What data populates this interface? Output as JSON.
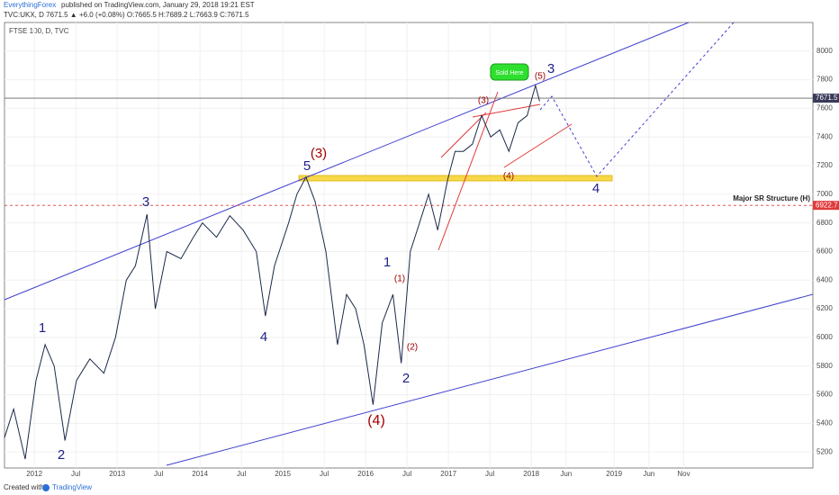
{
  "header": {
    "author": "EverythingForex",
    "published": "published on TradingView.com, January 29, 2018 19:21 EST",
    "quote": "TVC:UKX, D 7671.5 ▲ +6.0 (+0.08%) O:7665.5 H:7689.2 L:7663.9 C:7671.5"
  },
  "footer": {
    "created": "Created with",
    "brand": "TradingView"
  },
  "chart_data": {
    "type": "line",
    "legend": "FTSE 100, D, TVC",
    "color": "#1b2a4a",
    "x": [
      2011.64,
      2011.75,
      2011.89,
      2012.02,
      2012.13,
      2012.24,
      2012.37,
      2012.51,
      2012.67,
      2012.84,
      2012.98,
      2013.11,
      2013.22,
      2013.36,
      2013.46,
      2013.6,
      2013.77,
      2013.92,
      2014.03,
      2014.2,
      2014.36,
      2014.52,
      2014.68,
      2014.79,
      2014.9,
      2015.07,
      2015.17,
      2015.28,
      2015.39,
      2015.52,
      2015.66,
      2015.77,
      2015.88,
      2015.98,
      2016.09,
      2016.2,
      2016.33,
      2016.43,
      2016.54,
      2016.65,
      2016.76,
      2016.87,
      2016.99,
      2017.08,
      2017.18,
      2017.29,
      2017.4,
      2017.51,
      2017.62,
      2017.73,
      2017.84,
      2017.95,
      2018.05,
      2018.1
    ],
    "values": [
      5300,
      5500,
      5150,
      5700,
      5950,
      5800,
      5280,
      5700,
      5850,
      5750,
      6000,
      6400,
      6500,
      6860,
      6200,
      6600,
      6550,
      6700,
      6800,
      6700,
      6850,
      6750,
      6600,
      6150,
      6500,
      6800,
      7000,
      7120,
      6950,
      6600,
      5950,
      6300,
      6200,
      5950,
      5530,
      6100,
      6300,
      5820,
      6600,
      6800,
      7000,
      6750,
      7100,
      7300,
      7300,
      7350,
      7550,
      7400,
      7450,
      7300,
      7500,
      7550,
      7760,
      7650
    ],
    "last_price": {
      "value": 7671.5
    },
    "support": {
      "value": 6922.7,
      "label": "Major SR Structure (H)"
    },
    "callout": "Sold Here",
    "waves": [
      {
        "text": "1",
        "color": "#1f1f8a"
      },
      {
        "text": "2",
        "color": "#1f1f8a"
      },
      {
        "text": "3",
        "color": "#1f1f8a"
      },
      {
        "text": "4",
        "color": "#1f1f8a"
      },
      {
        "text": "5",
        "color": "#1f1f8a"
      },
      {
        "text": "(3)",
        "color": "#a30000"
      },
      {
        "text": "(4)",
        "color": "#a30000"
      },
      {
        "text": "(1)",
        "color": "#a30000"
      },
      {
        "text": "(2)",
        "color": "#a30000"
      },
      {
        "text": "1",
        "color": "#1f1f8a"
      },
      {
        "text": "2",
        "color": "#1f1f8a"
      },
      {
        "text": "(3)",
        "color": "#a30000"
      },
      {
        "text": "(4)",
        "color": "#a30000"
      },
      {
        "text": "(5)",
        "color": "#a30000"
      },
      {
        "text": "3",
        "color": "#1f1f8a"
      },
      {
        "text": "4",
        "color": "#1f1f8a"
      }
    ],
    "xlim": [
      2011.64,
      2021.4
    ],
    "ylim": [
      5088,
      8200
    ],
    "xticks": [
      2012,
      {
        "value": 2012.5,
        "label": "Jul"
      },
      2013,
      {
        "value": 2013.5,
        "label": "Jul"
      },
      2014,
      {
        "value": 2014.5,
        "label": "Jul"
      },
      2015,
      {
        "value": 2015.5,
        "label": "Jul"
      },
      2016,
      {
        "value": 2016.5,
        "label": "Jul"
      },
      2017,
      {
        "value": 2017.5,
        "label": "Jul"
      },
      2018,
      {
        "value": 2018.42,
        "label": "Jun"
      },
      2019,
      {
        "value": 2019.42,
        "label": "Jun"
      },
      {
        "value": 2019.84,
        "label": "Nov"
      }
    ],
    "yticks": [
      5200,
      5400,
      5600,
      5800,
      6000,
      6200,
      6400,
      6600,
      6800,
      7000,
      7200,
      7400,
      7600,
      7800,
      8000
    ]
  }
}
